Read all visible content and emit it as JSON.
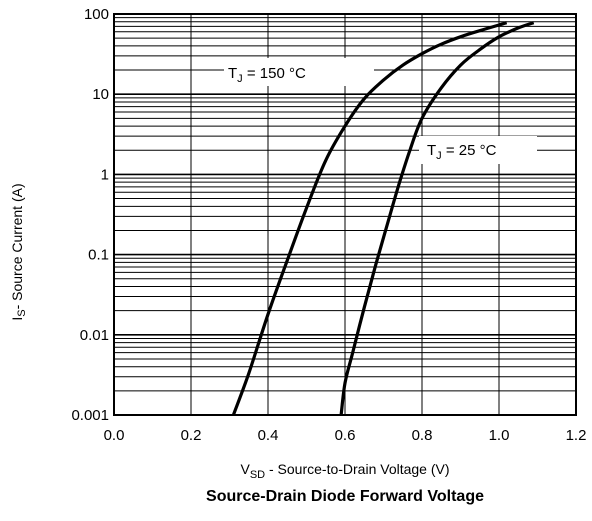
{
  "chart_data": {
    "type": "line",
    "title": "Source-Drain Diode Forward Voltage",
    "xlabel": {
      "main": "V",
      "sub": "SD",
      "rest": " - Source-to-Drain Voltage (V)"
    },
    "ylabel": {
      "main": "I",
      "sub": "S",
      "rest": "- Source Current (A)"
    },
    "x_scale": "linear",
    "y_scale": "log",
    "xlim": [
      0.0,
      1.2
    ],
    "ylim": [
      0.001,
      100
    ],
    "x_ticks": [
      {
        "value": 0.0,
        "label": "0.0"
      },
      {
        "value": 0.2,
        "label": "0.2"
      },
      {
        "value": 0.4,
        "label": "0.4"
      },
      {
        "value": 0.6,
        "label": "0.6"
      },
      {
        "value": 0.8,
        "label": "0.8"
      },
      {
        "value": 1.0,
        "label": "1.0"
      },
      {
        "value": 1.2,
        "label": "1.2"
      }
    ],
    "y_ticks": [
      {
        "value": 100,
        "label": "100"
      },
      {
        "value": 10,
        "label": "10"
      },
      {
        "value": 1,
        "label": "1"
      },
      {
        "value": 0.1,
        "label": "0.1"
      },
      {
        "value": 0.01,
        "label": "0.01"
      },
      {
        "value": 0.001,
        "label": "0.001"
      }
    ],
    "grid": true,
    "series": [
      {
        "name": {
          "main": "T",
          "sub": "J",
          "rest": " = 150 °C"
        },
        "x": [
          0.31,
          0.35,
          0.4,
          0.45,
          0.5,
          0.55,
          0.6,
          0.65,
          0.7,
          0.75,
          0.8,
          0.85,
          0.9,
          0.95,
          1.0,
          1.02
        ],
        "y": [
          0.001,
          0.0033,
          0.018,
          0.085,
          0.38,
          1.5,
          4.0,
          8.8,
          15,
          23,
          32,
          42,
          52,
          62,
          73,
          78
        ]
      },
      {
        "name": {
          "main": "T",
          "sub": "J",
          "rest": " = 25 °C"
        },
        "x": [
          0.59,
          0.6,
          0.62,
          0.65,
          0.68,
          0.71,
          0.74,
          0.77,
          0.8,
          0.85,
          0.9,
          0.95,
          1.0,
          1.05,
          1.09
        ],
        "y": [
          0.001,
          0.0025,
          0.006,
          0.022,
          0.075,
          0.24,
          0.75,
          2.1,
          5.0,
          12,
          23,
          36,
          52,
          67,
          78
        ]
      }
    ]
  }
}
